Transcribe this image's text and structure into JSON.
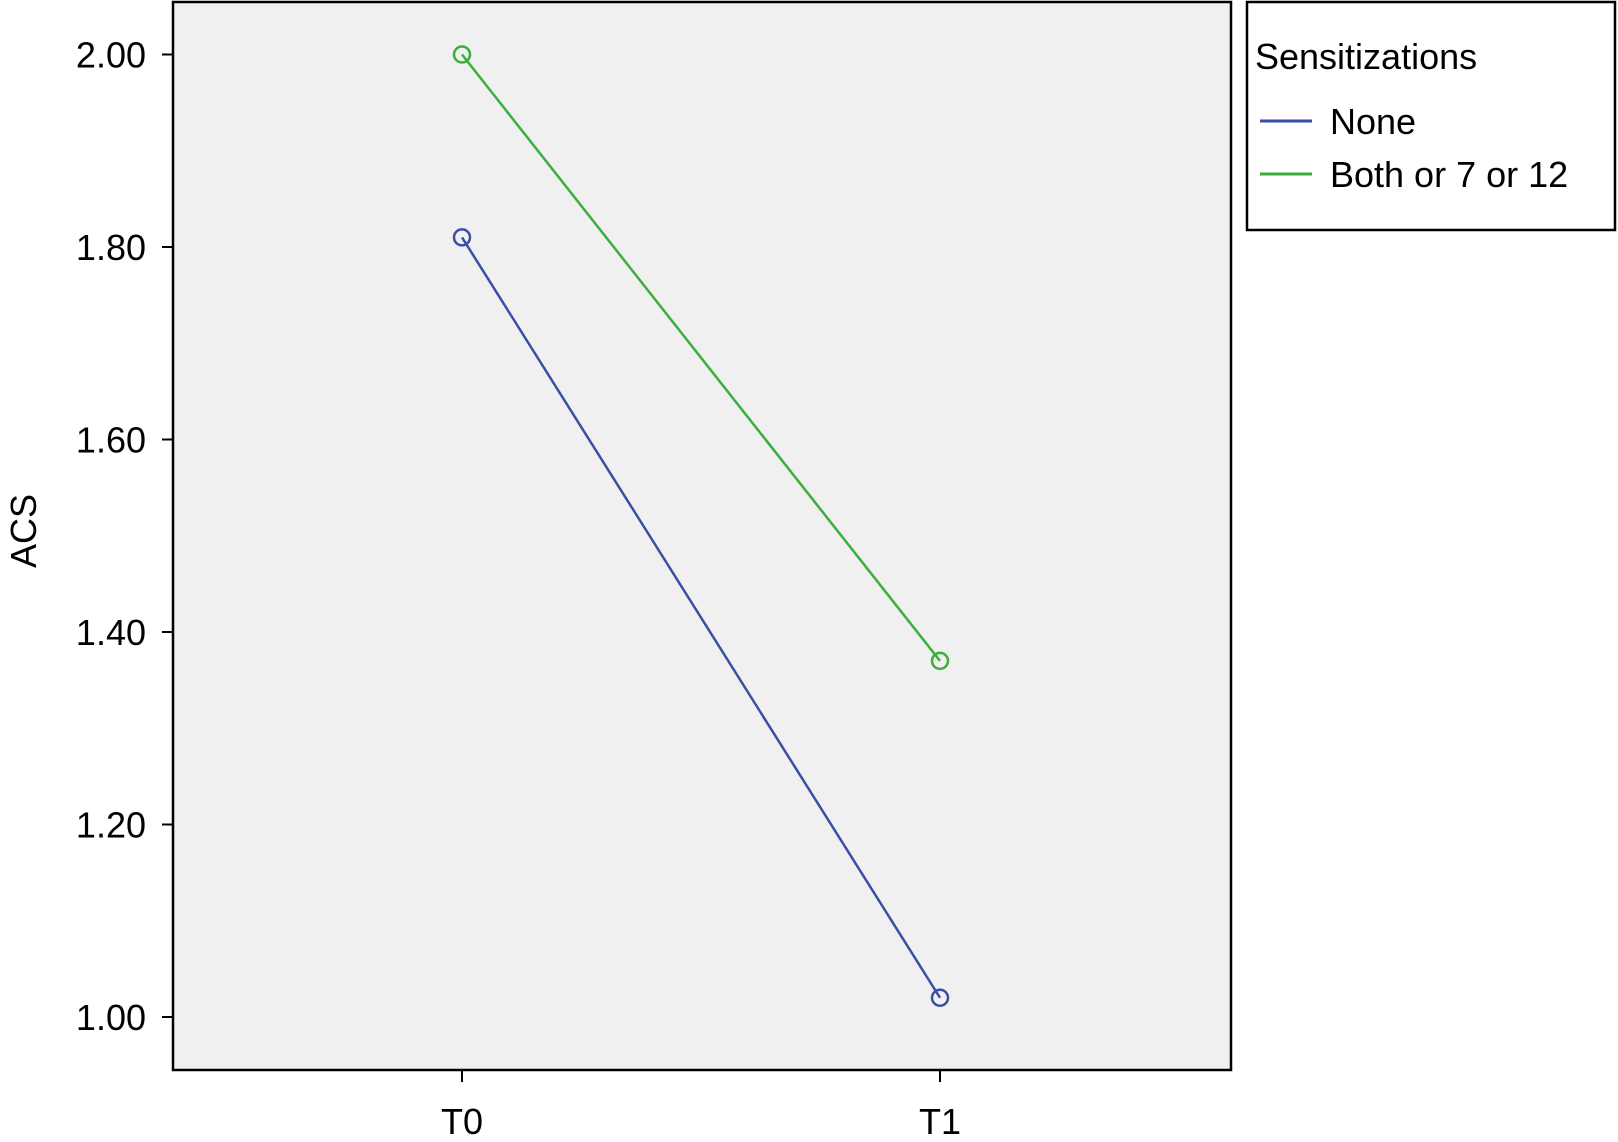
{
  "chart_data": {
    "type": "line",
    "title": "",
    "xlabel": "",
    "ylabel": "ACS",
    "categories": [
      "T0",
      "T1"
    ],
    "yticks": [
      "1.00",
      "1.20",
      "1.40",
      "1.60",
      "1.80",
      "2.00"
    ],
    "ylim": [
      0.94,
      2.06
    ],
    "grid": false,
    "legend": {
      "title": "Sensitizations",
      "placement": "outside-top-right"
    },
    "series": [
      {
        "name": "None",
        "values": [
          1.81,
          1.02
        ],
        "color": "#3a4fa3"
      },
      {
        "name": "Both or 7 or 12",
        "values": [
          2.0,
          1.37
        ],
        "color": "#3cae3c"
      }
    ]
  }
}
